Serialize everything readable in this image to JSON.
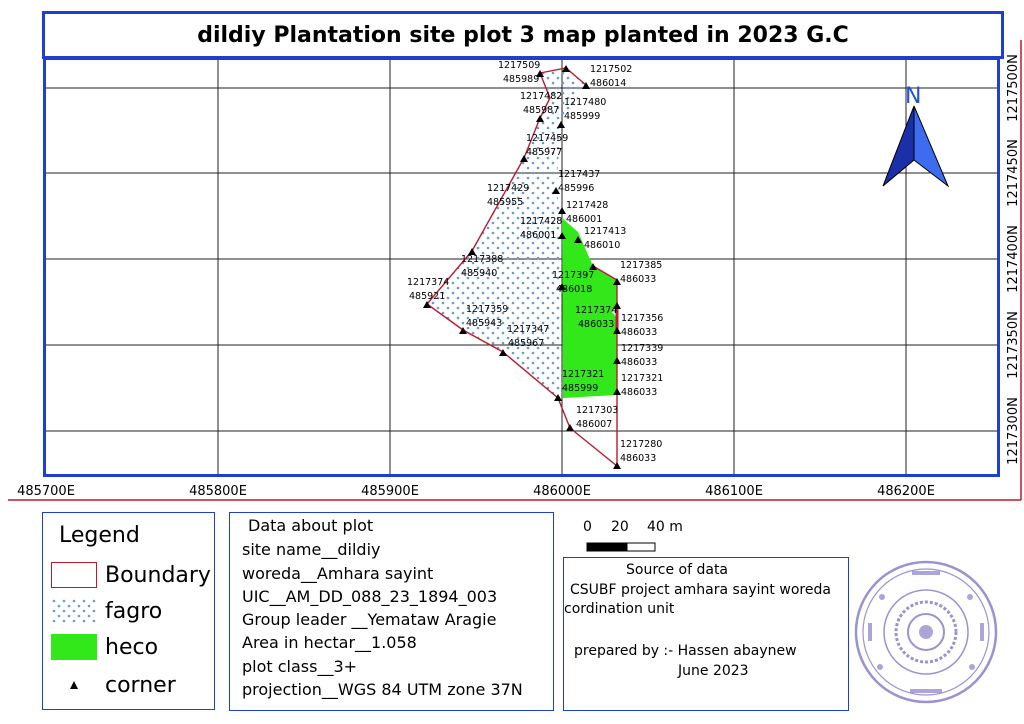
{
  "title": "dildiy Plantation site plot 3 map planted in 2023 G.C",
  "map": {
    "x_ticks": [
      "485700E",
      "485800E",
      "485900E",
      "486000E",
      "486100E",
      "486200E"
    ],
    "y_ticks": [
      "1217300N",
      "1217350N",
      "1217400N",
      "1217450N",
      "1217500N"
    ],
    "north_label": "N",
    "colors": {
      "frame": "#1f3fd0",
      "boundary": "#c0182e",
      "heco": "#33e81a",
      "fagro_dot": "#6b9bc8",
      "arrow": "#2450d8"
    },
    "corners": [
      {
        "e": "485989",
        "n": "1217509"
      },
      {
        "e": "486014",
        "n": "1217502"
      },
      {
        "e": "485987",
        "n": "1217482"
      },
      {
        "e": "485999",
        "n": "1217480"
      },
      {
        "e": "485977",
        "n": "1217459"
      },
      {
        "e": "485996",
        "n": "1217437"
      },
      {
        "e": "485955",
        "n": "1217429"
      },
      {
        "e": "486001",
        "n": "1217428"
      },
      {
        "e": "486001",
        "n": "1217428"
      },
      {
        "e": "486010",
        "n": "1217413"
      },
      {
        "e": "485940",
        "n": "1217388"
      },
      {
        "e": "486018",
        "n": "1217397"
      },
      {
        "e": "486033",
        "n": "1217385"
      },
      {
        "e": "485921",
        "n": "1217374"
      },
      {
        "e": "485943",
        "n": "1217359"
      },
      {
        "e": "486033",
        "n": "1217374"
      },
      {
        "e": "486033",
        "n": "1217356"
      },
      {
        "e": "485967",
        "n": "1217347"
      },
      {
        "e": "486033",
        "n": "1217339"
      },
      {
        "e": "485999",
        "n": "1217321"
      },
      {
        "e": "486033",
        "n": "1217321"
      },
      {
        "e": "486007",
        "n": "1217303"
      },
      {
        "e": "486033",
        "n": "1217280"
      }
    ]
  },
  "scale": {
    "zero": "0",
    "mid": "20",
    "end": "40 m"
  },
  "legend": {
    "title": "Legend",
    "items": [
      {
        "label": "Boundary"
      },
      {
        "label": "fagro"
      },
      {
        "label": "heco"
      },
      {
        "label": "corner"
      }
    ]
  },
  "info": {
    "heading": "Data about plot",
    "lines": [
      "site name__dildiy",
      "woreda__Amhara sayint",
      "UIC__AM_DD_088_23_1894_003",
      "Group leader __Yemataw Aragie",
      "Area in hectar__1.058",
      "plot class__3+",
      "projection__WGS 84 UTM zone 37N"
    ]
  },
  "source": {
    "heading": "Source of data",
    "line1": "CSUBF project amhara sayint woreda",
    "line2": "cordination unit",
    "prepared": "prepared by :- Hassen abaynew",
    "date": "June 2023"
  }
}
